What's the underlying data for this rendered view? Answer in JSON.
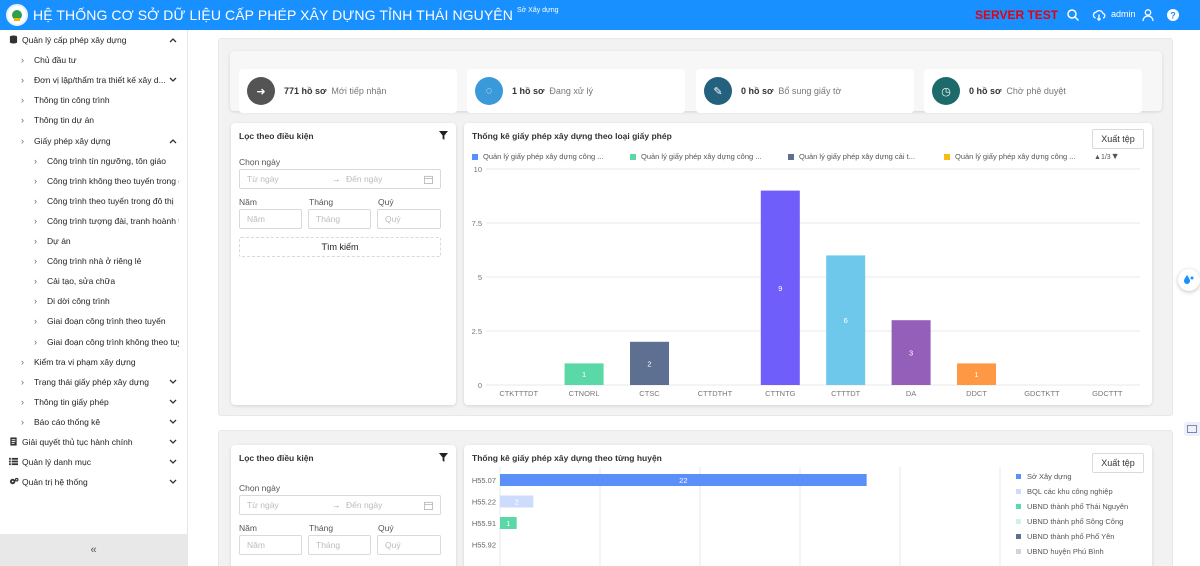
{
  "header": {
    "title": "HỆ THỐNG CƠ SỞ DỮ LIỆU CẤP PHÉP XÂY DỰNG TỈNH THÁI NGUYÊN",
    "subtitle": "Sở Xây dựng",
    "server_label": "SERVER TEST",
    "user": "admin"
  },
  "sidebar": {
    "items": [
      {
        "label": "Quản lý cấp phép xây dựng",
        "level": 0,
        "icon": "database-icon",
        "arrow": "up"
      },
      {
        "label": "Chủ đầu tư",
        "level": 1,
        "arrow": ""
      },
      {
        "label": "Đơn vị lập/thẩm tra thiết kế xây d...",
        "level": 1,
        "arrow": "down"
      },
      {
        "label": "Thông tin công trình",
        "level": 1,
        "arrow": ""
      },
      {
        "label": "Thông tin dự án",
        "level": 1,
        "arrow": ""
      },
      {
        "label": "Giấy phép xây dựng",
        "level": 1,
        "arrow": "up"
      },
      {
        "label": "Công trình tín ngưỡng, tôn giáo",
        "level": 2,
        "arrow": ""
      },
      {
        "label": "Công trình không theo tuyến trong đô",
        "level": 2,
        "arrow": ""
      },
      {
        "label": "Công trình theo tuyến trong đô thị",
        "level": 2,
        "arrow": ""
      },
      {
        "label": "Công trình tượng đài, tranh hoành tr",
        "level": 2,
        "arrow": ""
      },
      {
        "label": "Dự án",
        "level": 2,
        "arrow": ""
      },
      {
        "label": "Công trình nhà ở riêng lẻ",
        "level": 2,
        "arrow": ""
      },
      {
        "label": "Cải tạo, sửa chữa",
        "level": 2,
        "arrow": ""
      },
      {
        "label": "Di dời công trình",
        "level": 2,
        "arrow": ""
      },
      {
        "label": "Giai đoạn công trình theo tuyến",
        "level": 2,
        "arrow": ""
      },
      {
        "label": "Giai đoạn công trình không theo tuyế",
        "level": 2,
        "arrow": ""
      },
      {
        "label": "Kiểm tra vi phạm xây dựng",
        "level": 1,
        "arrow": ""
      },
      {
        "label": "Trạng thái giấy phép xây dựng",
        "level": 1,
        "arrow": "down"
      },
      {
        "label": "Thông tin giấy phép",
        "level": 1,
        "arrow": "down"
      },
      {
        "label": "Báo cáo thống kê",
        "level": 1,
        "arrow": "down"
      },
      {
        "label": "Giải quyết thủ tục hành chính",
        "level": 0,
        "icon": "document-icon",
        "arrow": "down"
      },
      {
        "label": "Quản lý danh mục",
        "level": 0,
        "icon": "list-icon",
        "arrow": "down"
      },
      {
        "label": "Quản trị hệ thống",
        "level": 0,
        "icon": "gears-icon",
        "arrow": "down"
      }
    ],
    "collapse_label": "«"
  },
  "stats": [
    {
      "value": "771 hồ sơ",
      "label": "Mới tiếp nhận",
      "color": "#545454",
      "icon": "sign-in-icon"
    },
    {
      "value": "1 hồ sơ",
      "label": "Đang xử lý",
      "color": "#3a9ad9",
      "icon": "spinner-icon"
    },
    {
      "value": "0 hồ sơ",
      "label": "Bổ sung giấy tờ",
      "color": "#24617f",
      "icon": "edit-icon"
    },
    {
      "value": "0 hồ sơ",
      "label": "Chờ phê duyệt",
      "color": "#1d6a6b",
      "icon": "clock-icon"
    }
  ],
  "filter": {
    "title": "Lọc theo điều kiện",
    "date_label": "Chọn ngày",
    "from_placeholder": "Từ ngày",
    "to_placeholder": "Đến ngày",
    "year_label": "Năm",
    "month_label": "Tháng",
    "quarter_label": "Quý",
    "year_placeholder": "Năm",
    "month_placeholder": "Tháng",
    "quarter_placeholder": "Quý",
    "search_button": "Tìm kiếm"
  },
  "export_label": "Xuất tệp",
  "chart_data": [
    {
      "type": "bar",
      "title": "Thống kê giấy phép xây dựng theo loại giấy phép",
      "categories": [
        "CTKTTTDT",
        "CTNORL",
        "CTSC",
        "CTTDTHT",
        "CTTNTG",
        "CTTTDT",
        "DA",
        "DDCT",
        "GDCTKTT",
        "GDCTTT"
      ],
      "values": [
        0,
        1,
        2,
        0,
        9,
        6,
        3,
        1,
        0,
        0
      ],
      "colors": [
        "#5b8ff9",
        "#5ad8a6",
        "#5d7092",
        "#f6bd16",
        "#6f5ef9",
        "#6dc8ec",
        "#945fb9",
        "#ff9845",
        "#1e9493",
        "#ff99c3"
      ],
      "yticks": [
        "0",
        "2.5",
        "5",
        "7.5",
        "10"
      ],
      "ylim": [
        0,
        10
      ],
      "legend": [
        {
          "name": "Quản lý giấy phép xây dựng công ...",
          "color": "#5b8ff9"
        },
        {
          "name": "Quản lý giấy phép xây dựng công ...",
          "color": "#5ad8a6"
        },
        {
          "name": "Quản lý giấy phép xây dựng cải t...",
          "color": "#5d7092"
        },
        {
          "name": "Quản lý giấy phép xây dựng công ...",
          "color": "#f6bd16"
        }
      ],
      "legend_page": "1/3"
    },
    {
      "type": "bar",
      "orientation": "horizontal",
      "title": "Thống kê giấy phép xây dựng theo từng huyện",
      "categories": [
        "H55.07",
        "H55.22",
        "H55.91",
        "H55.92"
      ],
      "values": [
        22,
        2,
        1,
        0
      ],
      "colors": [
        "#5b8ff9",
        "#cddcfd",
        "#5ad8a6",
        "#cdf3e4"
      ],
      "xlim": [
        0,
        30
      ],
      "legend": [
        {
          "name": "Sở Xây dựng",
          "color": "#5b8ff9"
        },
        {
          "name": "BQL các khu công nghiệp",
          "color": "#cddcfd"
        },
        {
          "name": "UBND thành phố Thái Nguyên",
          "color": "#5ad8a6"
        },
        {
          "name": "UBND thành phố Sông Công",
          "color": "#cdf3e4"
        },
        {
          "name": "UBND thành phố Phổ Yên",
          "color": "#5d7092"
        },
        {
          "name": "UBND huyện Phú Bình",
          "color": "#ced4de"
        }
      ]
    }
  ]
}
